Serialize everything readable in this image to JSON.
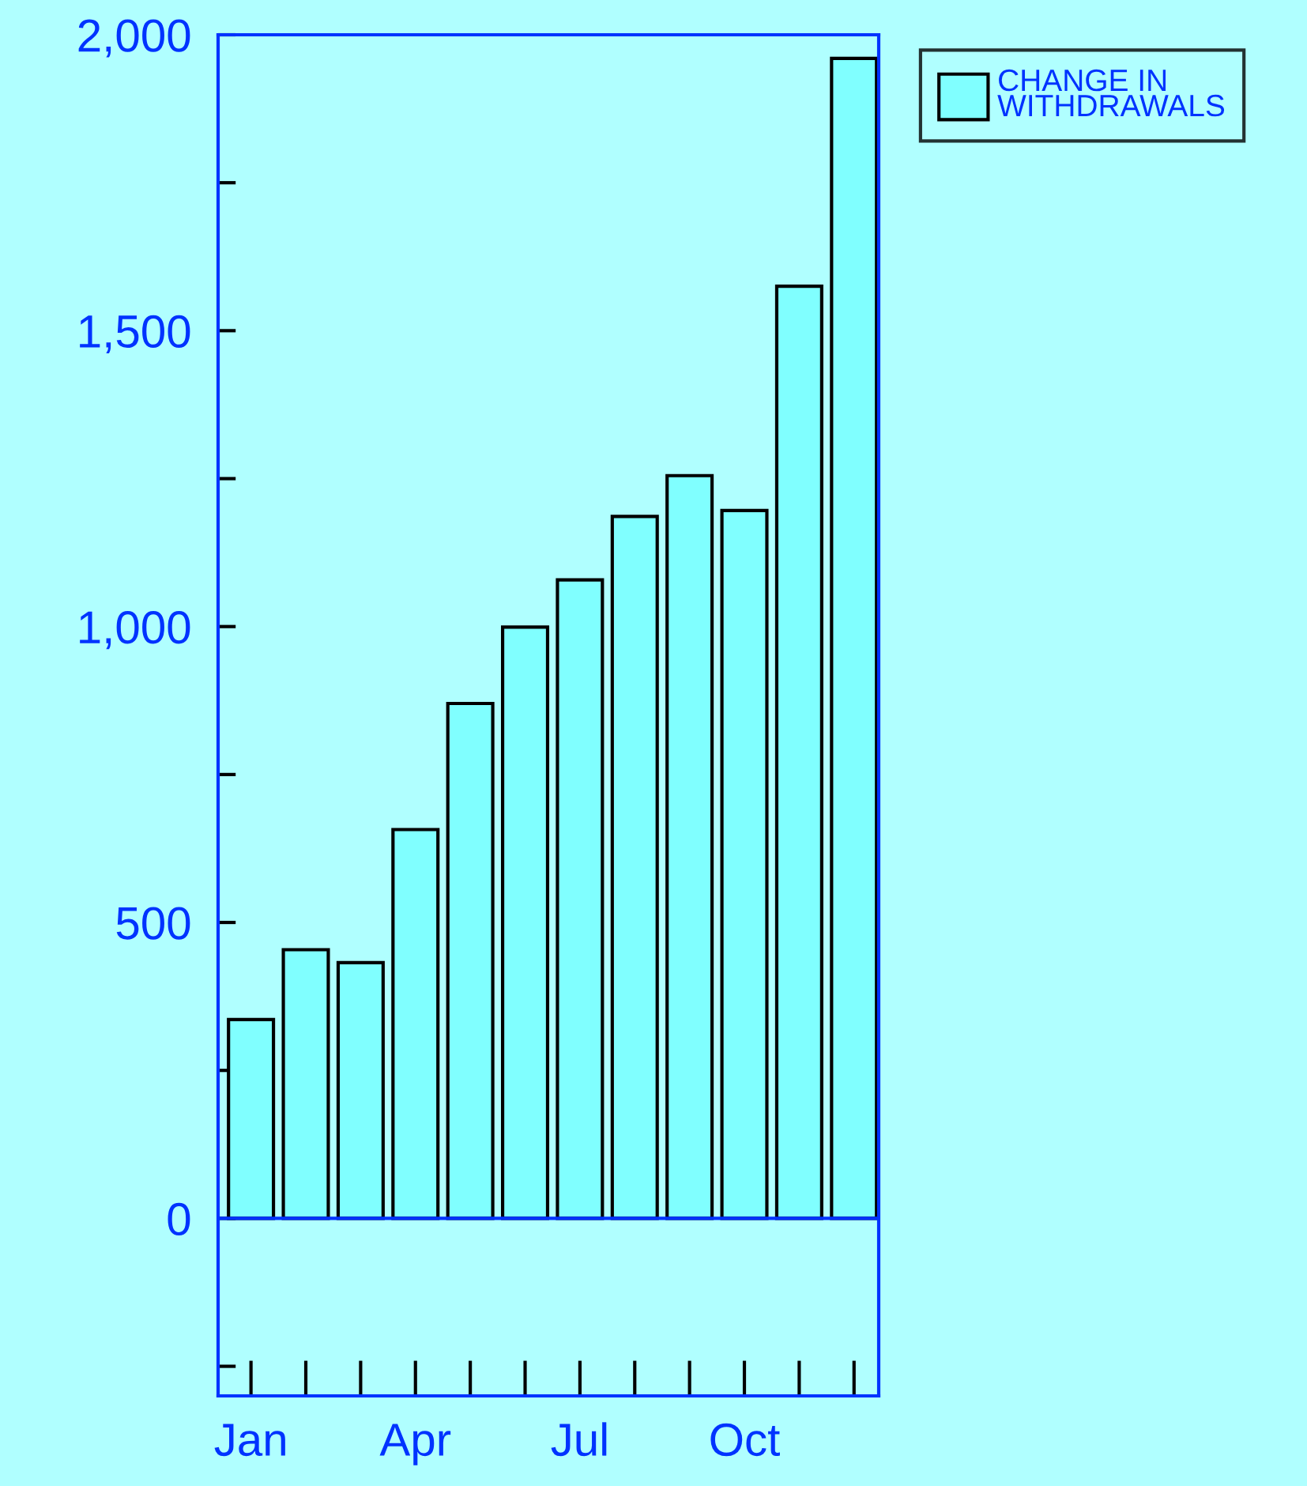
{
  "chart_data": {
    "type": "bar",
    "categories": [
      "Jan",
      null,
      null,
      "Apr",
      null,
      null,
      "Jul",
      null,
      null,
      "Oct",
      null,
      null
    ],
    "series": [
      {
        "name": "CHANGE IN\nWITHDRAWALS",
        "color": "#80ffff",
        "values": [
          336,
          454,
          432,
          657,
          870,
          999,
          1079,
          1186,
          1255,
          1196,
          1575,
          1960
        ]
      }
    ],
    "ylim": [
      -300,
      2000
    ],
    "yticks": [
      {
        "value": -250,
        "label": null
      },
      0,
      {
        "value": 250,
        "label": null
      },
      500,
      {
        "value": 750,
        "label": null
      },
      "1,000",
      {
        "value": 1250,
        "label": null
      },
      "1,500",
      {
        "value": 1750,
        "label": null
      },
      "2,000"
    ],
    "ref_lines": [
      {
        "axis": "y",
        "value": 0,
        "color": "#0033ff"
      }
    ],
    "legend": "top right",
    "grid": false
  }
}
